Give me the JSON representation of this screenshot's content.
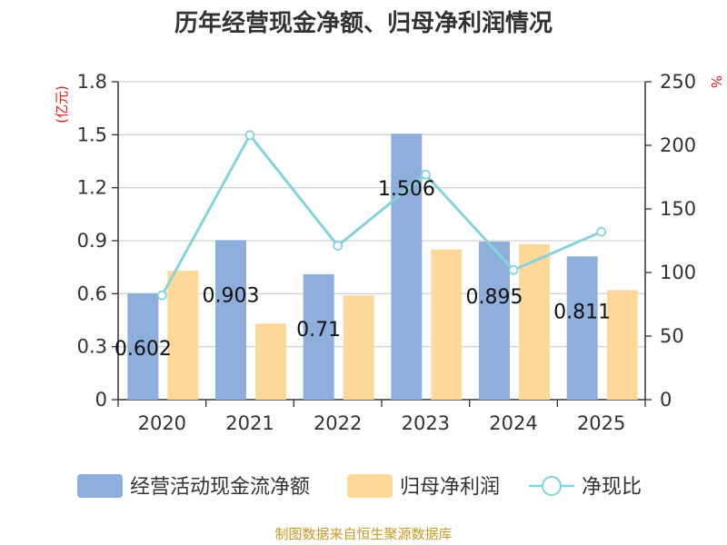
{
  "chart_data": {
    "type": "bar",
    "title": "历年经营现金净额、归母净利润情况",
    "categories": [
      "2020",
      "2021",
      "2022",
      "2023",
      "2024",
      "2025"
    ],
    "series": [
      {
        "name": "经营活动现金流净额",
        "axis": "left",
        "kind": "bar",
        "color": "#8eaedc",
        "values": [
          0.602,
          0.903,
          0.71,
          1.506,
          0.895,
          0.811
        ],
        "data_labels": [
          "0.602",
          "0.903",
          "0.71",
          "1.506",
          "0.895",
          "0.811"
        ]
      },
      {
        "name": "归母净利润",
        "axis": "left",
        "kind": "bar",
        "color": "#fed898",
        "values": [
          0.73,
          0.43,
          0.59,
          0.85,
          0.88,
          0.62
        ]
      },
      {
        "name": "净现比",
        "axis": "right",
        "kind": "line",
        "color": "#86d3dc",
        "values": [
          82,
          208,
          121,
          177,
          102,
          132
        ]
      }
    ],
    "y_left": {
      "unit": "(亿元)",
      "min": 0,
      "max": 1.8,
      "ticks": [
        "0",
        "0.3",
        "0.6",
        "0.9",
        "1.2",
        "1.5",
        "1.8"
      ]
    },
    "y_right": {
      "unit": "%",
      "min": 0,
      "max": 250,
      "ticks": [
        "0",
        "50",
        "100",
        "150",
        "200",
        "250"
      ]
    },
    "grid": true,
    "legend_position": "bottom"
  },
  "source": "制图数据来自恒生聚源数据库"
}
